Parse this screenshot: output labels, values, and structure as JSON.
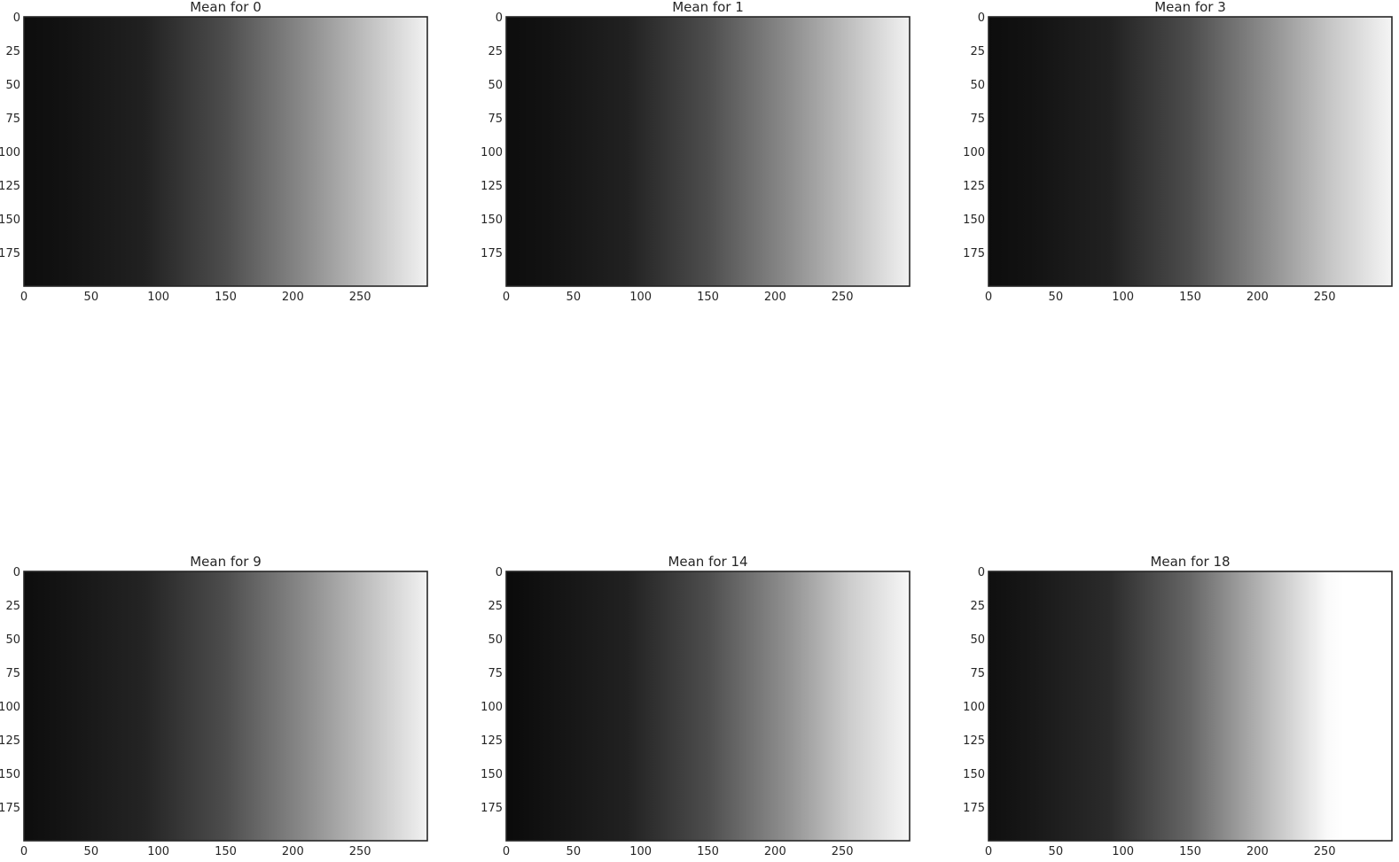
{
  "chart_data": [
    {
      "type": "heatmap",
      "title": "Mean for 0",
      "image_shape": [
        200,
        300
      ],
      "xlim": [
        0,
        300
      ],
      "ylim": [
        200,
        0
      ],
      "xticks": [
        0,
        50,
        100,
        150,
        200,
        250
      ],
      "yticks": [
        0,
        25,
        50,
        75,
        100,
        125,
        150,
        175
      ],
      "gray_profile": [
        [
          0,
          0.05
        ],
        [
          0.1,
          0.07
        ],
        [
          0.3,
          0.13
        ],
        [
          0.5,
          0.3
        ],
        [
          0.7,
          0.55
        ],
        [
          0.85,
          0.75
        ],
        [
          1.0,
          0.95
        ]
      ],
      "grid": false,
      "colormap": "gray"
    },
    {
      "type": "heatmap",
      "title": "Mean for 1",
      "image_shape": [
        200,
        300
      ],
      "xlim": [
        0,
        300
      ],
      "ylim": [
        200,
        0
      ],
      "xticks": [
        0,
        50,
        100,
        150,
        200,
        250
      ],
      "yticks": [
        0,
        25,
        50,
        75,
        100,
        125,
        150,
        175
      ],
      "gray_profile": [
        [
          0,
          0.05
        ],
        [
          0.1,
          0.07
        ],
        [
          0.3,
          0.13
        ],
        [
          0.5,
          0.3
        ],
        [
          0.7,
          0.55
        ],
        [
          0.85,
          0.75
        ],
        [
          1.0,
          0.95
        ]
      ],
      "grid": false,
      "colormap": "gray"
    },
    {
      "type": "heatmap",
      "title": "Mean for 3",
      "image_shape": [
        200,
        300
      ],
      "xlim": [
        0,
        300
      ],
      "ylim": [
        200,
        0
      ],
      "xticks": [
        0,
        50,
        100,
        150,
        200,
        250
      ],
      "yticks": [
        0,
        25,
        50,
        75,
        100,
        125,
        150,
        175
      ],
      "gray_profile": [
        [
          0,
          0.05
        ],
        [
          0.1,
          0.07
        ],
        [
          0.3,
          0.13
        ],
        [
          0.5,
          0.3
        ],
        [
          0.7,
          0.57
        ],
        [
          0.85,
          0.78
        ],
        [
          1.0,
          0.96
        ]
      ],
      "grid": false,
      "colormap": "gray"
    },
    {
      "type": "heatmap",
      "title": "Mean for 9",
      "image_shape": [
        200,
        300
      ],
      "xlim": [
        0,
        300
      ],
      "ylim": [
        200,
        0
      ],
      "xticks": [
        0,
        50,
        100,
        150,
        200,
        250
      ],
      "yticks": [
        0,
        25,
        50,
        75,
        100,
        125,
        150,
        175
      ],
      "gray_profile": [
        [
          0,
          0.05
        ],
        [
          0.1,
          0.08
        ],
        [
          0.3,
          0.14
        ],
        [
          0.5,
          0.3
        ],
        [
          0.7,
          0.55
        ],
        [
          0.85,
          0.75
        ],
        [
          1.0,
          0.95
        ]
      ],
      "grid": false,
      "colormap": "gray"
    },
    {
      "type": "heatmap",
      "title": "Mean for 14",
      "image_shape": [
        200,
        300
      ],
      "xlim": [
        0,
        300
      ],
      "ylim": [
        200,
        0
      ],
      "xticks": [
        0,
        50,
        100,
        150,
        200,
        250
      ],
      "yticks": [
        0,
        25,
        50,
        75,
        100,
        125,
        150,
        175
      ],
      "gray_profile": [
        [
          0,
          0.04
        ],
        [
          0.1,
          0.07
        ],
        [
          0.3,
          0.13
        ],
        [
          0.5,
          0.3
        ],
        [
          0.7,
          0.57
        ],
        [
          0.85,
          0.8
        ],
        [
          1.0,
          0.97
        ]
      ],
      "grid": false,
      "colormap": "gray"
    },
    {
      "type": "heatmap",
      "title": "Mean for 18",
      "image_shape": [
        200,
        300
      ],
      "xlim": [
        0,
        300
      ],
      "ylim": [
        200,
        0
      ],
      "xticks": [
        0,
        50,
        100,
        150,
        200,
        250
      ],
      "yticks": [
        0,
        25,
        50,
        75,
        100,
        125,
        150,
        175
      ],
      "gray_profile": [
        [
          0,
          0.06
        ],
        [
          0.1,
          0.09
        ],
        [
          0.3,
          0.17
        ],
        [
          0.5,
          0.4
        ],
        [
          0.7,
          0.75
        ],
        [
          0.84,
          0.98
        ],
        [
          0.88,
          1.0
        ],
        [
          1.0,
          1.0
        ]
      ],
      "grid": false,
      "colormap": "gray"
    }
  ]
}
